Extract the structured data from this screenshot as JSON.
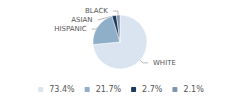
{
  "chart_data": {
    "type": "pie",
    "categories": [
      "WHITE",
      "HISPANIC",
      "ASIAN",
      "BLACK"
    ],
    "values": [
      73.4,
      21.7,
      2.7,
      2.1
    ],
    "value_labels": [
      "73.4%",
      "21.7%",
      "2.7%",
      "2.1%"
    ],
    "colors": [
      "#d9e4f0",
      "#8faec8",
      "#1e3a5f",
      "#7f96ad"
    ],
    "legend": "bottom"
  }
}
